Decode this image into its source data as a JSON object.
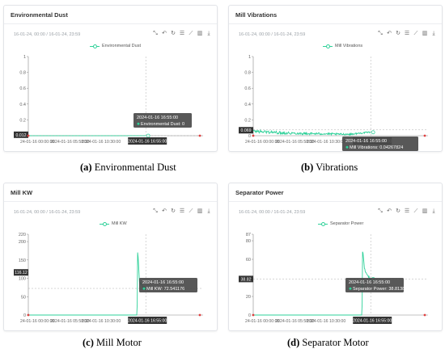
{
  "toolbar_icons": [
    "zoom-icon",
    "zoom-reset-icon",
    "restore-icon",
    "data-view-icon",
    "line-chart-icon",
    "bar-chart-icon",
    "download-icon"
  ],
  "series_color": "#2ed199",
  "panels": [
    {
      "title": "Environmental Dust",
      "range": "16-01-24, 00:00 / 16-01-24, 23:59",
      "caption_letter": "(a)",
      "caption_text": "Environmental Dust",
      "y_labels": [
        "1",
        "0.8",
        "0.6",
        "0.4",
        "0.2",
        "0"
      ],
      "x_labels": [
        "24-01-16 00:00:00",
        "2024-01-16 05:58:30",
        "2024-01-16 10:30:00"
      ],
      "pointer_y_label": "0.012",
      "pointer_x_label": "2024-01-16 16:55:00",
      "tooltip_time": "2024-01-16 16:55:00",
      "tooltip_value": "Environmental Dust: 0"
    },
    {
      "title": "Mill Vibrations",
      "range": "16-01-24, 00:00 / 16-01-24, 23:59",
      "caption_letter": "(b)",
      "caption_text": "Vibrations",
      "y_labels": [
        "1",
        "0.8",
        "0.6",
        "0.4",
        "0.2",
        "0"
      ],
      "x_labels": [
        "24-01-16 00:00:00",
        "2024-01-16 05:58:30",
        "2024-01-16 10:30:00"
      ],
      "pointer_y_label": "0.069",
      "pointer_x_label": "2024-01-16 16:55:00",
      "tooltip_time": "2024-01-16 16:55:00",
      "tooltip_value": "Mill Vibrations: 0.04267824"
    },
    {
      "title": "Mill KW",
      "range": "16-01-24, 00:00 / 16-01-24, 23:59",
      "caption_letter": "(c)",
      "caption_text": "Mill Motor",
      "y_labels": [
        "220",
        "200",
        "150",
        "100",
        "50",
        "0"
      ],
      "x_labels": [
        "24-01-16 00:00:00",
        "2024-01-16 05:58:30",
        "2024-01-16 10:30:00"
      ],
      "pointer_y_label": "116.12",
      "pointer_x_label": "2024-01-16 16:55:00",
      "tooltip_time": "2024-01-16 16:55:00",
      "tooltip_value": "Mill KW: 72.541176"
    },
    {
      "title": "Separator Power",
      "range": "16-01-24, 00:00 / 16-01-24, 23:59",
      "caption_letter": "(d)",
      "caption_text": "Separator Motor",
      "y_labels": [
        "87",
        "80",
        "60",
        "40",
        "20",
        "0"
      ],
      "x_labels": [
        "24-01-16 00:00:00",
        "2024-01-16 05:58:30",
        "2024-01-16 10:30:00"
      ],
      "pointer_y_label": "38.82",
      "pointer_x_label": "2024-01-16 16:55:00",
      "tooltip_time": "2024-01-16 16:55:00",
      "tooltip_value": "Separator Power: 38.81387"
    }
  ],
  "chart_data": [
    {
      "type": "line",
      "title": "Environmental Dust",
      "series": [
        {
          "name": "Environmental Dust",
          "x": [
            "2024-01-16 00:00",
            "2024-01-16 05:58",
            "2024-01-16 10:30",
            "2024-01-16 16:55"
          ],
          "values": [
            0,
            0,
            0,
            0
          ]
        }
      ],
      "ylim": [
        0,
        1
      ],
      "legend": "top-center",
      "grid": false
    },
    {
      "type": "line",
      "title": "Mill Vibrations",
      "series": [
        {
          "name": "Mill Vibrations",
          "x": [
            "2024-01-16 00:00",
            "2024-01-16 02:00",
            "2024-01-16 04:00",
            "2024-01-16 06:00",
            "2024-01-16 08:00",
            "2024-01-16 10:00",
            "2024-01-16 12:00",
            "2024-01-16 14:00",
            "2024-01-16 16:55"
          ],
          "values": [
            0.05,
            0.04,
            0.03,
            0.025,
            0.02,
            0.02,
            0.015,
            0.015,
            0.043
          ]
        }
      ],
      "ylim": [
        0,
        1
      ],
      "legend": "top-center",
      "grid": false
    },
    {
      "type": "line",
      "title": "Mill KW",
      "series": [
        {
          "name": "Mill KW",
          "x": [
            "2024-01-16 00:00",
            "2024-01-16 10:30",
            "2024-01-16 15:40",
            "2024-01-16 15:45",
            "2024-01-16 16:00",
            "2024-01-16 16:30",
            "2024-01-16 16:55"
          ],
          "values": [
            0,
            0,
            0,
            180,
            90,
            78,
            72.5
          ]
        }
      ],
      "ylim": [
        0,
        220
      ],
      "legend": "top-center",
      "grid": false
    },
    {
      "type": "line",
      "title": "Separator Power",
      "series": [
        {
          "name": "Separator Power",
          "x": [
            "2024-01-16 00:00",
            "2024-01-16 10:30",
            "2024-01-16 15:40",
            "2024-01-16 15:45",
            "2024-01-16 16:00",
            "2024-01-16 16:30",
            "2024-01-16 16:55"
          ],
          "values": [
            0,
            0,
            0,
            72,
            50,
            42,
            38.8
          ]
        }
      ],
      "ylim": [
        0,
        87
      ],
      "legend": "top-center",
      "grid": false
    }
  ]
}
